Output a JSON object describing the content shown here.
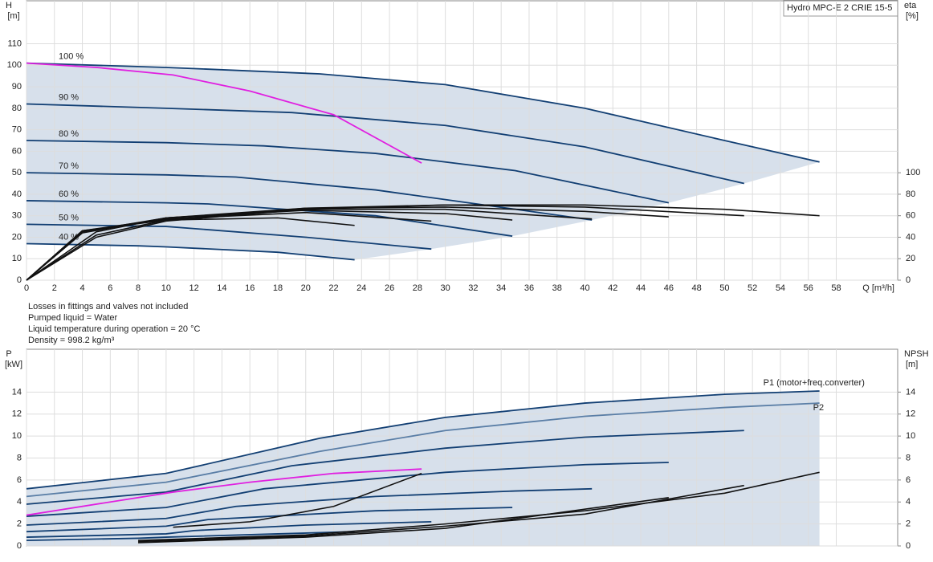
{
  "title": "Hydro MPC-E 2 CRIE 15-5",
  "notes": [
    "Losses in fittings and valves not included",
    "Pumped liquid = Water",
    "Liquid temperature during operation = 20 °C",
    "Density = 998.2 kg/m³"
  ],
  "chart_data": [
    {
      "type": "line",
      "ylabel": "H",
      "yunit": "[m]",
      "y2label": "eta",
      "y2unit": "[%]",
      "xlabel": "Q [m³/h]",
      "xlim": [
        0,
        62.4
      ],
      "xticks": [
        0,
        2,
        4,
        6,
        8,
        10,
        12,
        14,
        16,
        18,
        20,
        22,
        24,
        26,
        28,
        30,
        32,
        34,
        36,
        38,
        40,
        42,
        44,
        46,
        48,
        50,
        52,
        54,
        56,
        58
      ],
      "ylim": [
        0,
        130
      ],
      "yticks": [
        0,
        10,
        20,
        30,
        40,
        50,
        60,
        70,
        80,
        90,
        100,
        110
      ],
      "y2lim": [
        0,
        260
      ],
      "y2ticks": [
        0,
        20,
        40,
        60,
        80,
        100
      ],
      "grid": true,
      "area_color": "#c9d6e4",
      "series": [
        {
          "name": "100 %",
          "color": "#123f73",
          "x": [
            0,
            10,
            21,
            30,
            40,
            50,
            56.8
          ],
          "values": [
            101,
            99,
            96,
            91,
            80,
            65,
            55
          ]
        },
        {
          "name": "90 %",
          "color": "#123f73",
          "x": [
            0,
            10,
            19,
            30,
            40,
            51.4
          ],
          "values": [
            82,
            80,
            78,
            72,
            62,
            45
          ]
        },
        {
          "name": "80 %",
          "color": "#123f73",
          "x": [
            0,
            10,
            17,
            25,
            35,
            46
          ],
          "values": [
            65,
            64,
            62.5,
            59,
            51,
            36
          ]
        },
        {
          "name": "70 %",
          "color": "#123f73",
          "x": [
            0,
            10,
            15,
            25,
            35,
            40.5
          ],
          "values": [
            50,
            49,
            48,
            42,
            33,
            28
          ]
        },
        {
          "name": "60 %",
          "color": "#123f73",
          "x": [
            0,
            10,
            13,
            25,
            34.8
          ],
          "values": [
            37,
            36,
            35.5,
            30,
            20.5
          ]
        },
        {
          "name": "50 %",
          "color": "#123f73",
          "x": [
            0,
            10,
            12,
            20,
            29
          ],
          "values": [
            26,
            25,
            24,
            20,
            14.5
          ]
        },
        {
          "name": "40 %",
          "color": "#123f73",
          "x": [
            0,
            8,
            10,
            18,
            23.5
          ],
          "values": [
            17,
            16,
            15.5,
            13,
            9.5
          ]
        },
        {
          "color": "#e020e0",
          "x": [
            0,
            5,
            10.5,
            16,
            22,
            28.3
          ],
          "values": [
            101,
            99,
            95.5,
            88,
            77,
            54.5
          ]
        },
        {
          "color": "#111111",
          "axis": "y2",
          "x": [
            0,
            5,
            10,
            20,
            30,
            40,
            50,
            56.8
          ],
          "values": [
            0,
            40,
            55,
            66,
            70,
            70,
            66,
            60
          ]
        },
        {
          "color": "#111111",
          "axis": "y2",
          "x": [
            0,
            5,
            10,
            20,
            30,
            40,
            51.4
          ],
          "values": [
            0,
            42,
            56,
            67,
            70,
            68,
            60
          ]
        },
        {
          "color": "#111111",
          "axis": "y2",
          "x": [
            0,
            5,
            10,
            20,
            30,
            40,
            46
          ],
          "values": [
            0,
            45,
            58,
            67,
            68,
            64,
            59
          ]
        },
        {
          "color": "#111111",
          "axis": "y2",
          "x": [
            0,
            4,
            10,
            20,
            30,
            40.5
          ],
          "values": [
            0,
            44,
            58,
            66,
            66,
            57
          ]
        },
        {
          "color": "#111111",
          "axis": "y2",
          "x": [
            0,
            4,
            10,
            20,
            30,
            34.8
          ],
          "values": [
            0,
            45,
            58,
            65,
            62,
            56
          ]
        },
        {
          "color": "#111111",
          "axis": "y2",
          "x": [
            0,
            4,
            10,
            20,
            29
          ],
          "values": [
            0,
            46,
            57,
            63,
            55
          ]
        },
        {
          "color": "#111111",
          "axis": "y2",
          "x": [
            0,
            4,
            10,
            18,
            23.5
          ],
          "values": [
            0,
            46,
            56,
            58,
            51
          ]
        }
      ]
    },
    {
      "type": "line",
      "ylabel": "P",
      "yunit": "[kW]",
      "y2label": "NPSH",
      "y2unit": "[m]",
      "xlim": [
        0,
        62.4
      ],
      "xticks": [
        0,
        2,
        4,
        6,
        8,
        10,
        12,
        14,
        16,
        18,
        20,
        22,
        24,
        26,
        28,
        30,
        32,
        34,
        36,
        38,
        40,
        42,
        44,
        46,
        48,
        50,
        52,
        54,
        56,
        58
      ],
      "ylim": [
        0,
        17.9
      ],
      "yticks": [
        0,
        2,
        4,
        6,
        8,
        10,
        12,
        14
      ],
      "y2lim": [
        0,
        17.9
      ],
      "y2ticks": [
        0,
        2,
        4,
        6,
        8,
        10,
        12,
        14
      ],
      "grid": true,
      "area_color": "#c9d6e4",
      "series": [
        {
          "name": "P1 (motor+freq.converter)",
          "color": "#123f73",
          "x": [
            0,
            10,
            21,
            30,
            40,
            50,
            56.8
          ],
          "values": [
            5.2,
            6.6,
            9.8,
            11.7,
            13,
            13.8,
            14.1
          ]
        },
        {
          "name": "P2",
          "color": "#5a7ea6",
          "x": [
            0,
            10,
            21,
            30,
            40,
            50,
            56.8
          ],
          "values": [
            4.5,
            5.8,
            8.6,
            10.5,
            11.8,
            12.6,
            13
          ]
        },
        {
          "color": "#123f73",
          "x": [
            0,
            10,
            19,
            30,
            40,
            51.4
          ],
          "values": [
            3.8,
            4.9,
            7.3,
            8.9,
            9.9,
            10.5
          ]
        },
        {
          "color": "#123f73",
          "x": [
            0,
            10,
            17,
            30,
            40,
            46
          ],
          "values": [
            2.7,
            3.5,
            5.2,
            6.7,
            7.4,
            7.6
          ]
        },
        {
          "color": "#123f73",
          "x": [
            0,
            10,
            15,
            25,
            35,
            40.5
          ],
          "values": [
            1.9,
            2.5,
            3.6,
            4.5,
            5,
            5.2
          ]
        },
        {
          "color": "#123f73",
          "x": [
            0,
            10,
            13,
            25,
            34.8
          ],
          "values": [
            1.3,
            1.8,
            2.4,
            3.2,
            3.5
          ]
        },
        {
          "color": "#123f73",
          "x": [
            0,
            10,
            12,
            20,
            29
          ],
          "values": [
            0.8,
            1.1,
            1.4,
            1.9,
            2.2
          ]
        },
        {
          "color": "#123f73",
          "x": [
            0,
            8,
            10,
            18,
            23.5
          ],
          "values": [
            0.5,
            0.7,
            0.8,
            1.1,
            1.3
          ]
        },
        {
          "color": "#e020e0",
          "x": [
            0,
            10.5,
            16,
            22,
            28.3
          ],
          "values": [
            2.8,
            4.9,
            5.8,
            6.6,
            7.0
          ]
        },
        {
          "color": "#111111",
          "axis": "y2",
          "x": [
            8,
            20,
            30,
            40,
            50,
            56.8
          ],
          "values": [
            0.5,
            1,
            2,
            3.2,
            4.8,
            6.7
          ]
        },
        {
          "color": "#111111",
          "axis": "y2",
          "x": [
            8,
            20,
            30,
            40,
            51.4
          ],
          "values": [
            0.4,
            0.9,
            1.8,
            2.9,
            5.5
          ]
        },
        {
          "color": "#111111",
          "axis": "y2",
          "x": [
            8,
            20,
            30,
            46
          ],
          "values": [
            0.3,
            0.8,
            1.6,
            4.4
          ]
        },
        {
          "color": "#111111",
          "axis": "y2",
          "x": [
            10.5,
            16,
            22,
            28.3
          ],
          "values": [
            1.7,
            2.2,
            3.6,
            6.6
          ]
        }
      ]
    }
  ]
}
